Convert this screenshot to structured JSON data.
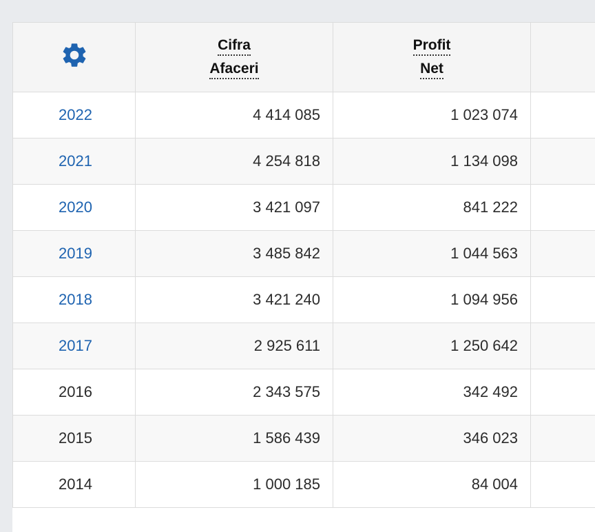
{
  "colors": {
    "link": "#1e63b0",
    "gear": "#1e63b0",
    "header_bg": "#f5f5f5",
    "stripe_bg": "#f8f8f8"
  },
  "table": {
    "settings_icon": "gear-icon",
    "headers": [
      {
        "line1": "Cifra",
        "line2": "Afaceri"
      },
      {
        "line1": "Profit",
        "line2": "Net"
      }
    ],
    "rows": [
      {
        "year": "2022",
        "linked": true,
        "revenue": "4 414 085",
        "profit": "1 023 074"
      },
      {
        "year": "2021",
        "linked": true,
        "revenue": "4 254 818",
        "profit": "1 134 098"
      },
      {
        "year": "2020",
        "linked": true,
        "revenue": "3 421 097",
        "profit": "841 222"
      },
      {
        "year": "2019",
        "linked": true,
        "revenue": "3 485 842",
        "profit": "1 044 563"
      },
      {
        "year": "2018",
        "linked": true,
        "revenue": "3 421 240",
        "profit": "1 094 956"
      },
      {
        "year": "2017",
        "linked": true,
        "revenue": "2 925 611",
        "profit": "1 250 642"
      },
      {
        "year": "2016",
        "linked": false,
        "revenue": "2 343 575",
        "profit": "342 492"
      },
      {
        "year": "2015",
        "linked": false,
        "revenue": "1 586 439",
        "profit": "346 023"
      },
      {
        "year": "2014",
        "linked": false,
        "revenue": "1 000 185",
        "profit": "84 004"
      }
    ]
  }
}
